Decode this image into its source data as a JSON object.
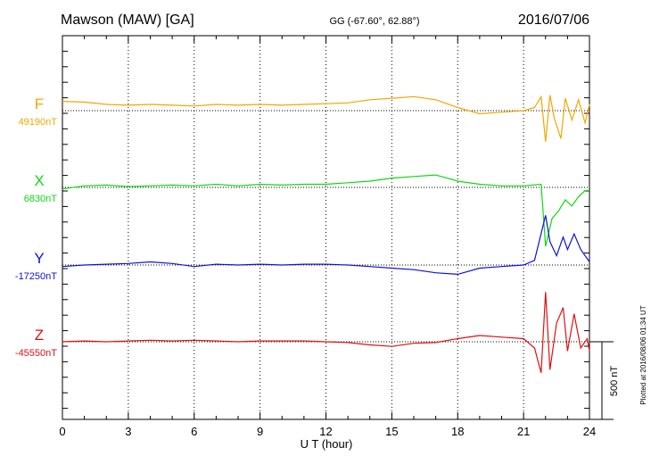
{
  "header": {
    "station": "Mawson (MAW)  [GA]",
    "coords": "GG (-67.60°,  62.88°)",
    "date": "2016/07/06"
  },
  "footer": {
    "plotted": "Plotted at 2016/08/06 01:34 UT"
  },
  "chart_data": {
    "type": "line",
    "title": "Mawson (MAW)  [GA]",
    "xlabel": "U T (hour)",
    "xlim": [
      0,
      24
    ],
    "xticks": [
      0,
      3,
      6,
      9,
      12,
      15,
      18,
      21,
      24
    ],
    "scale_bar_label": "500 nT",
    "scale_bar_nT": 500,
    "grid": true,
    "series": [
      {
        "name": "F",
        "baseline_label": "49190nT",
        "baseline_nT": 49190,
        "color": "#f0a800",
        "points": [
          [
            0,
            60
          ],
          [
            1,
            55
          ],
          [
            2,
            40
          ],
          [
            3,
            35
          ],
          [
            4,
            40
          ],
          [
            5,
            35
          ],
          [
            6,
            30
          ],
          [
            7,
            40
          ],
          [
            8,
            35
          ],
          [
            9,
            40
          ],
          [
            10,
            35
          ],
          [
            11,
            40
          ],
          [
            12,
            45
          ],
          [
            13,
            50
          ],
          [
            14,
            70
          ],
          [
            15,
            80
          ],
          [
            16,
            90
          ],
          [
            17,
            70
          ],
          [
            18,
            20
          ],
          [
            19,
            -20
          ],
          [
            20,
            -10
          ],
          [
            21,
            0
          ],
          [
            21.5,
            20
          ],
          [
            21.8,
            90
          ],
          [
            22.0,
            -200
          ],
          [
            22.2,
            100
          ],
          [
            22.4,
            -50
          ],
          [
            22.7,
            -180
          ],
          [
            22.9,
            80
          ],
          [
            23.2,
            -60
          ],
          [
            23.5,
            70
          ],
          [
            23.8,
            -80
          ],
          [
            24,
            40
          ]
        ]
      },
      {
        "name": "X",
        "baseline_label": "6830nT",
        "baseline_nT": 6830,
        "color": "#10d810",
        "points": [
          [
            0,
            -10
          ],
          [
            1,
            10
          ],
          [
            2,
            15
          ],
          [
            3,
            5
          ],
          [
            4,
            10
          ],
          [
            5,
            15
          ],
          [
            6,
            10
          ],
          [
            7,
            20
          ],
          [
            8,
            10
          ],
          [
            9,
            20
          ],
          [
            10,
            15
          ],
          [
            11,
            20
          ],
          [
            12,
            20
          ],
          [
            13,
            30
          ],
          [
            14,
            40
          ],
          [
            15,
            60
          ],
          [
            16,
            70
          ],
          [
            17,
            80
          ],
          [
            18,
            40
          ],
          [
            19,
            20
          ],
          [
            20,
            10
          ],
          [
            21,
            10
          ],
          [
            21.8,
            20
          ],
          [
            22.0,
            -380
          ],
          [
            22.3,
            -200
          ],
          [
            22.6,
            -150
          ],
          [
            22.9,
            -80
          ],
          [
            23.2,
            -120
          ],
          [
            23.5,
            -60
          ],
          [
            23.8,
            -20
          ],
          [
            24,
            -20
          ]
        ]
      },
      {
        "name": "Y",
        "baseline_label": "-17250nT",
        "baseline_nT": -17250,
        "color": "#1010e0",
        "points": [
          [
            0,
            -10
          ],
          [
            1,
            0
          ],
          [
            2,
            5
          ],
          [
            3,
            10
          ],
          [
            4,
            20
          ],
          [
            5,
            10
          ],
          [
            6,
            -10
          ],
          [
            7,
            5
          ],
          [
            8,
            0
          ],
          [
            9,
            5
          ],
          [
            10,
            0
          ],
          [
            11,
            5
          ],
          [
            12,
            5
          ],
          [
            13,
            0
          ],
          [
            14,
            -10
          ],
          [
            15,
            -20
          ],
          [
            16,
            -30
          ],
          [
            17,
            -50
          ],
          [
            18,
            -60
          ],
          [
            19,
            -20
          ],
          [
            20,
            -10
          ],
          [
            21,
            0
          ],
          [
            21.5,
            30
          ],
          [
            22.0,
            320
          ],
          [
            22.2,
            150
          ],
          [
            22.5,
            60
          ],
          [
            22.8,
            180
          ],
          [
            23.0,
            100
          ],
          [
            23.3,
            200
          ],
          [
            23.6,
            100
          ],
          [
            24,
            20
          ]
        ]
      },
      {
        "name": "Z",
        "baseline_label": "-45550nT",
        "baseline_nT": -45550,
        "color": "#e01010",
        "points": [
          [
            0,
            0
          ],
          [
            1,
            5
          ],
          [
            2,
            0
          ],
          [
            3,
            5
          ],
          [
            4,
            10
          ],
          [
            5,
            5
          ],
          [
            6,
            10
          ],
          [
            7,
            5
          ],
          [
            8,
            0
          ],
          [
            9,
            5
          ],
          [
            10,
            5
          ],
          [
            11,
            5
          ],
          [
            12,
            0
          ],
          [
            13,
            -5
          ],
          [
            14,
            -20
          ],
          [
            15,
            -30
          ],
          [
            16,
            -10
          ],
          [
            17,
            -5
          ],
          [
            18,
            20
          ],
          [
            19,
            40
          ],
          [
            20,
            30
          ],
          [
            21,
            20
          ],
          [
            21.5,
            -40
          ],
          [
            21.8,
            -200
          ],
          [
            22.0,
            320
          ],
          [
            22.2,
            -180
          ],
          [
            22.5,
            120
          ],
          [
            22.8,
            220
          ],
          [
            23.0,
            -60
          ],
          [
            23.3,
            180
          ],
          [
            23.6,
            -40
          ],
          [
            23.9,
            20
          ],
          [
            24,
            -60
          ]
        ]
      }
    ]
  }
}
